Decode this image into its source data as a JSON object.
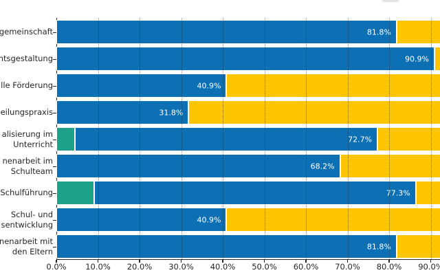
{
  "chart_data": {
    "type": "bar",
    "orientation": "horizontal",
    "stacked": true,
    "categories": [
      "gemeinschaft",
      "htsgestaltung",
      "lle Förderung",
      "eilungspraxis",
      "alisierung im\nUnterricht",
      "nenarbeit im\nSchulteam",
      "Schulführung",
      "Schul- und\nsentwicklung",
      "nenarbeit mit\nden Eltern"
    ],
    "series": [
      {
        "name": "segment-green",
        "color": "#1ea189",
        "values": [
          0,
          0,
          0,
          0,
          4.5,
          0,
          9.1,
          0,
          0
        ]
      },
      {
        "name": "segment-blue",
        "color": "#0d70b4",
        "values": [
          81.8,
          90.9,
          40.9,
          31.8,
          72.7,
          68.2,
          77.3,
          40.9,
          81.8
        ]
      },
      {
        "name": "segment-yellow",
        "color": "#fdc500",
        "values": [
          18.2,
          9.1,
          59.1,
          68.2,
          22.7,
          31.8,
          13.6,
          59.1,
          18.2
        ]
      }
    ],
    "bar_labels": [
      "81.8%",
      "90.9%",
      "40.9%",
      "31.8%",
      "72.7%",
      "68.2%",
      "77.3%",
      "40.9%",
      "81.8%"
    ],
    "x_tick_labels": [
      "0.0%",
      "10.0%",
      "20.0%",
      "30.0%",
      "40.0%",
      "50.0%",
      "60.0%",
      "70.0%",
      "80.0%",
      "90.0%"
    ],
    "xlim": [
      0,
      100
    ],
    "grid": "vertical dotted gridlines every 10%, drawn over bars",
    "legend": "clipped off-screen at top edge",
    "clipping": "y-axis category labels clipped at left edge; bars and 100% end clipped at right edge"
  },
  "colors": {
    "blue": "#0d70b4",
    "yellow": "#fdc500",
    "green": "#1ea189",
    "axis": "#262626",
    "text": "#262626",
    "bar_label_text": "#ffffff",
    "background": "#ffffff"
  }
}
